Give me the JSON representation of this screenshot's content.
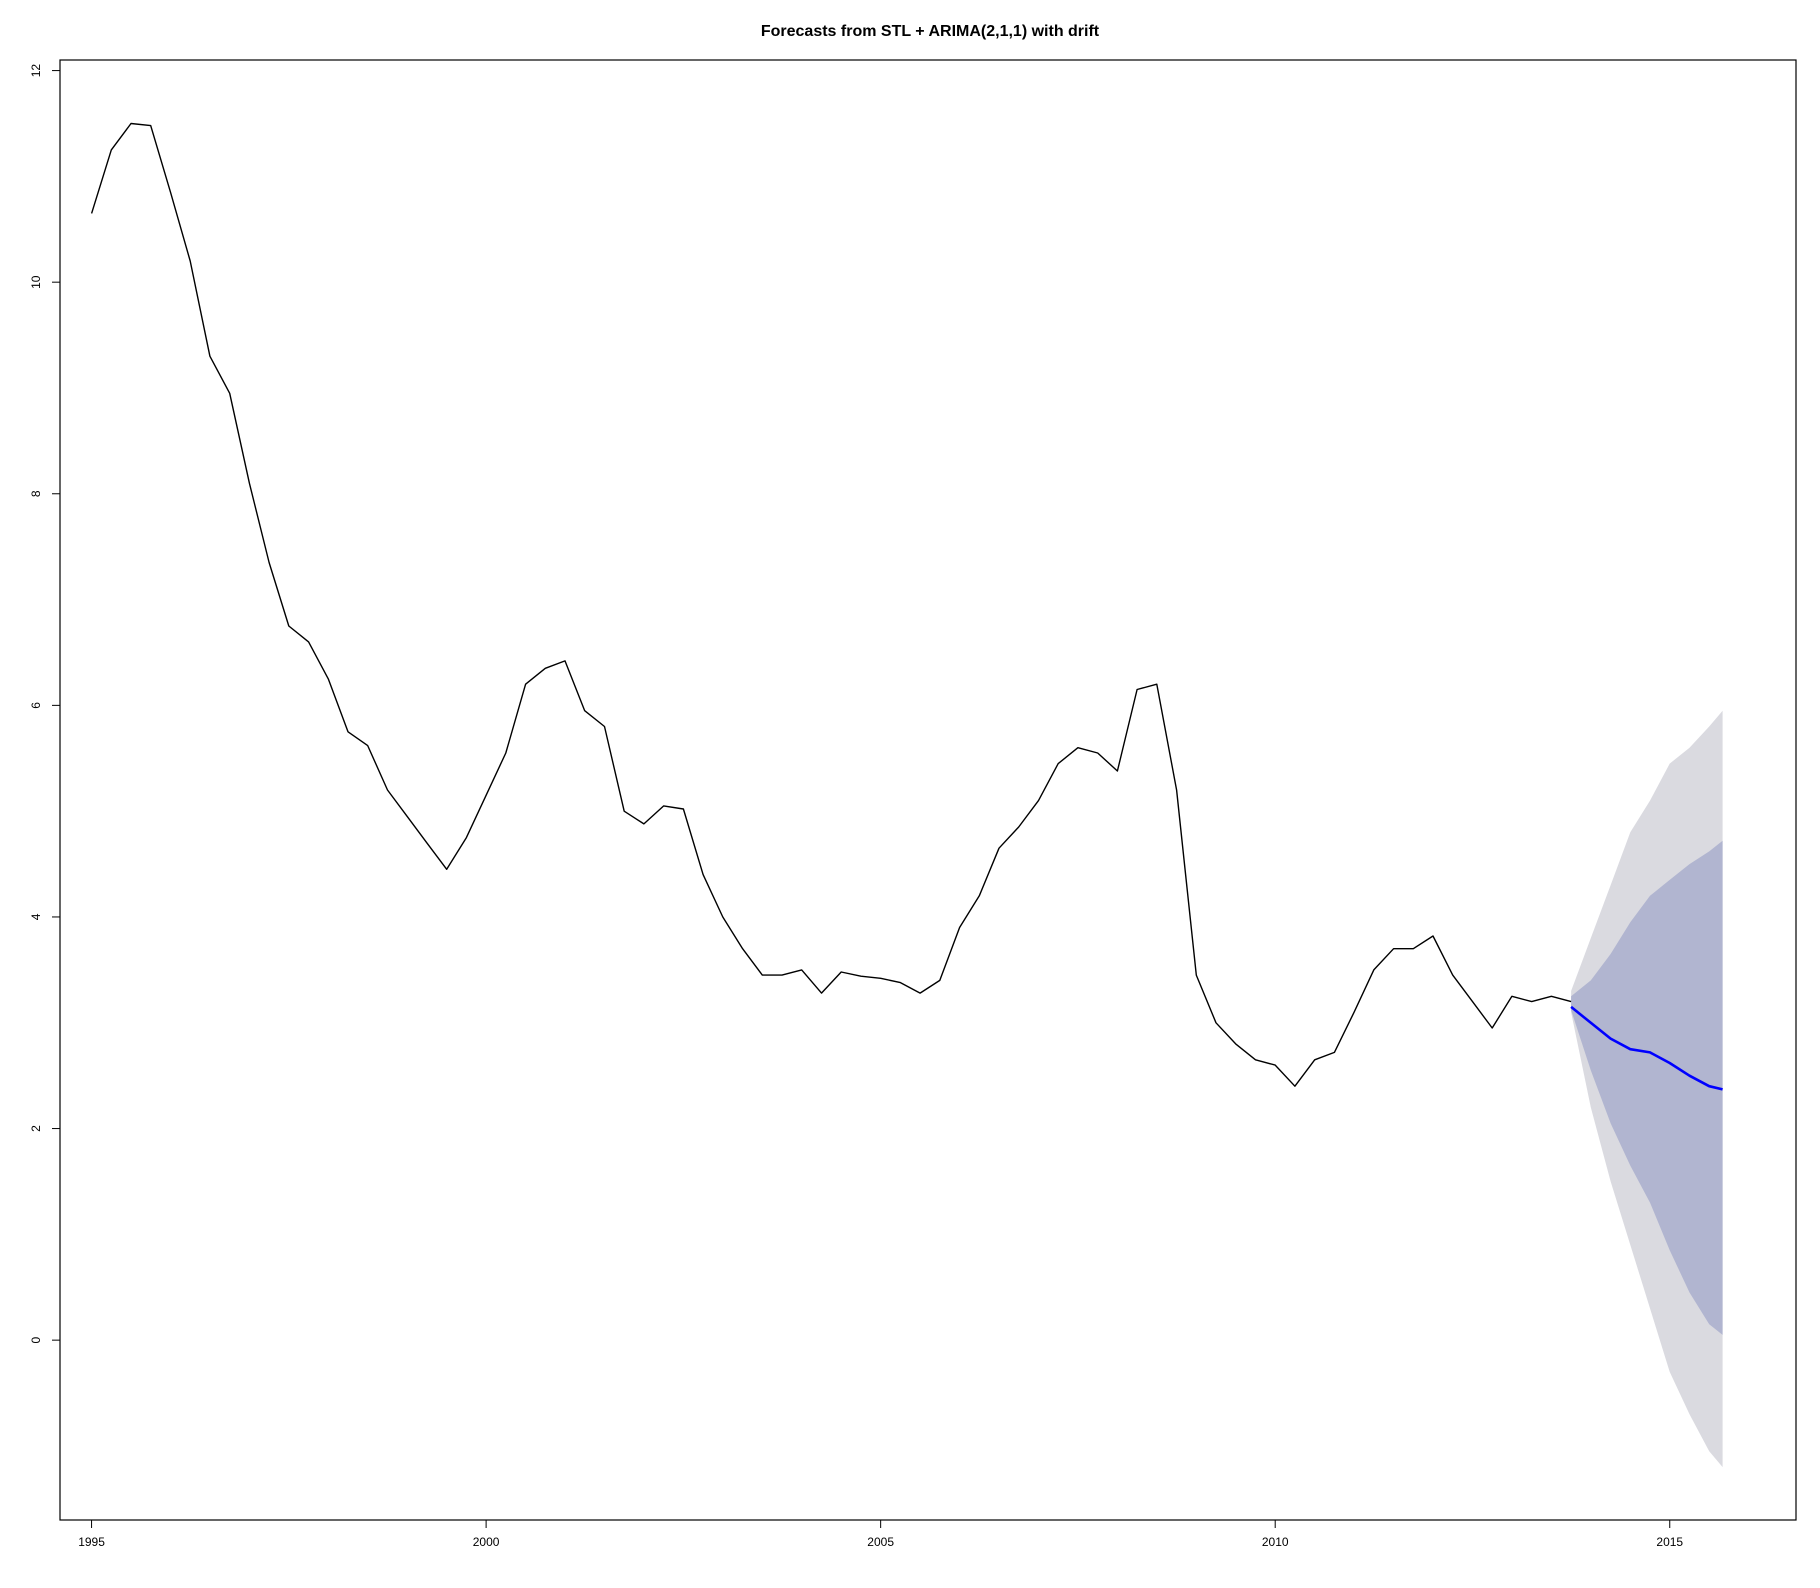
{
  "chart_data": {
    "type": "line",
    "title": "Forecasts from STL +  ARIMA(2,1,1) with drift",
    "xlabel": "",
    "ylabel": "",
    "xlim": [
      1994.6,
      2016.6
    ],
    "ylim": [
      -1.7,
      12.1
    ],
    "x_ticks": [
      1995,
      2000,
      2005,
      2010,
      2015
    ],
    "x_tick_labels": [
      "1995",
      "2000",
      "2005",
      "2010",
      "2015"
    ],
    "y_ticks": [
      0,
      2,
      4,
      6,
      8,
      10,
      12
    ],
    "y_tick_labels": [
      "0",
      "2",
      "4",
      "6",
      "8",
      "10",
      "12"
    ],
    "grid": false,
    "legend": "none",
    "series": [
      {
        "role": "observed",
        "color": "#000000",
        "x": [
          1995.0,
          1995.25,
          1995.5,
          1995.75,
          1996.0,
          1996.25,
          1996.5,
          1996.75,
          1997.0,
          1997.25,
          1997.5,
          1997.75,
          1998.0,
          1998.25,
          1998.5,
          1998.75,
          1999.0,
          1999.25,
          1999.5,
          1999.75,
          2000.0,
          2000.25,
          2000.5,
          2000.75,
          2001.0,
          2001.25,
          2001.5,
          2001.75,
          2002.0,
          2002.25,
          2002.5,
          2002.75,
          2003.0,
          2003.25,
          2003.5,
          2003.75,
          2004.0,
          2004.25,
          2004.5,
          2004.75,
          2005.0,
          2005.25,
          2005.5,
          2005.75,
          2006.0,
          2006.25,
          2006.5,
          2006.75,
          2007.0,
          2007.25,
          2007.5,
          2007.75,
          2008.0,
          2008.25,
          2008.5,
          2008.75,
          2009.0,
          2009.25,
          2009.5,
          2009.75,
          2010.0,
          2010.25,
          2010.5,
          2010.75,
          2011.0,
          2011.25,
          2011.5,
          2011.75,
          2012.0,
          2012.25,
          2012.5,
          2012.75,
          2013.0,
          2013.25,
          2013.5,
          2013.75
        ],
        "values": [
          10.65,
          11.25,
          11.5,
          11.48,
          10.85,
          10.2,
          9.3,
          8.95,
          8.1,
          7.35,
          6.75,
          6.6,
          6.25,
          5.75,
          5.62,
          5.2,
          4.95,
          4.7,
          4.45,
          4.75,
          5.15,
          5.55,
          6.2,
          6.35,
          6.42,
          5.95,
          5.8,
          5.0,
          4.88,
          5.05,
          5.02,
          4.4,
          4.0,
          3.7,
          3.45,
          3.45,
          3.5,
          3.28,
          3.48,
          3.44,
          3.42,
          3.38,
          3.28,
          3.4,
          3.9,
          4.2,
          4.65,
          4.85,
          5.1,
          5.45,
          5.6,
          5.55,
          5.38,
          6.15,
          6.2,
          5.2,
          3.45,
          3.0,
          2.8,
          2.65,
          2.6,
          2.4,
          2.65,
          2.72,
          3.1,
          3.5,
          3.7,
          3.7,
          3.82,
          3.45,
          3.2,
          2.95,
          3.25,
          3.2,
          3.25,
          3.2
        ]
      },
      {
        "role": "forecast",
        "color": "#0000ff",
        "x": [
          2013.75,
          2014.0,
          2014.25,
          2014.5,
          2014.75,
          2015.0,
          2015.25,
          2015.5,
          2015.67
        ],
        "values": [
          3.15,
          3.0,
          2.85,
          2.75,
          2.72,
          2.62,
          2.5,
          2.4,
          2.37
        ]
      }
    ],
    "intervals": [
      {
        "level": "outer",
        "color": "#dadae0",
        "x": [
          2013.75,
          2014.0,
          2014.25,
          2014.5,
          2014.75,
          2015.0,
          2015.25,
          2015.5,
          2015.67
        ],
        "lower": [
          3.1,
          2.2,
          1.5,
          0.9,
          0.3,
          -0.3,
          -0.7,
          -1.05,
          -1.2
        ],
        "upper": [
          3.3,
          3.8,
          4.3,
          4.8,
          5.1,
          5.45,
          5.6,
          5.8,
          5.95
        ]
      },
      {
        "level": "inner",
        "color": "#b1b5d0",
        "x": [
          2013.75,
          2014.0,
          2014.25,
          2014.5,
          2014.75,
          2015.0,
          2015.25,
          2015.5,
          2015.67
        ],
        "lower": [
          3.12,
          2.55,
          2.05,
          1.65,
          1.3,
          0.85,
          0.45,
          0.15,
          0.05
        ],
        "upper": [
          3.25,
          3.4,
          3.65,
          3.95,
          4.2,
          4.35,
          4.5,
          4.62,
          4.72
        ]
      }
    ]
  }
}
